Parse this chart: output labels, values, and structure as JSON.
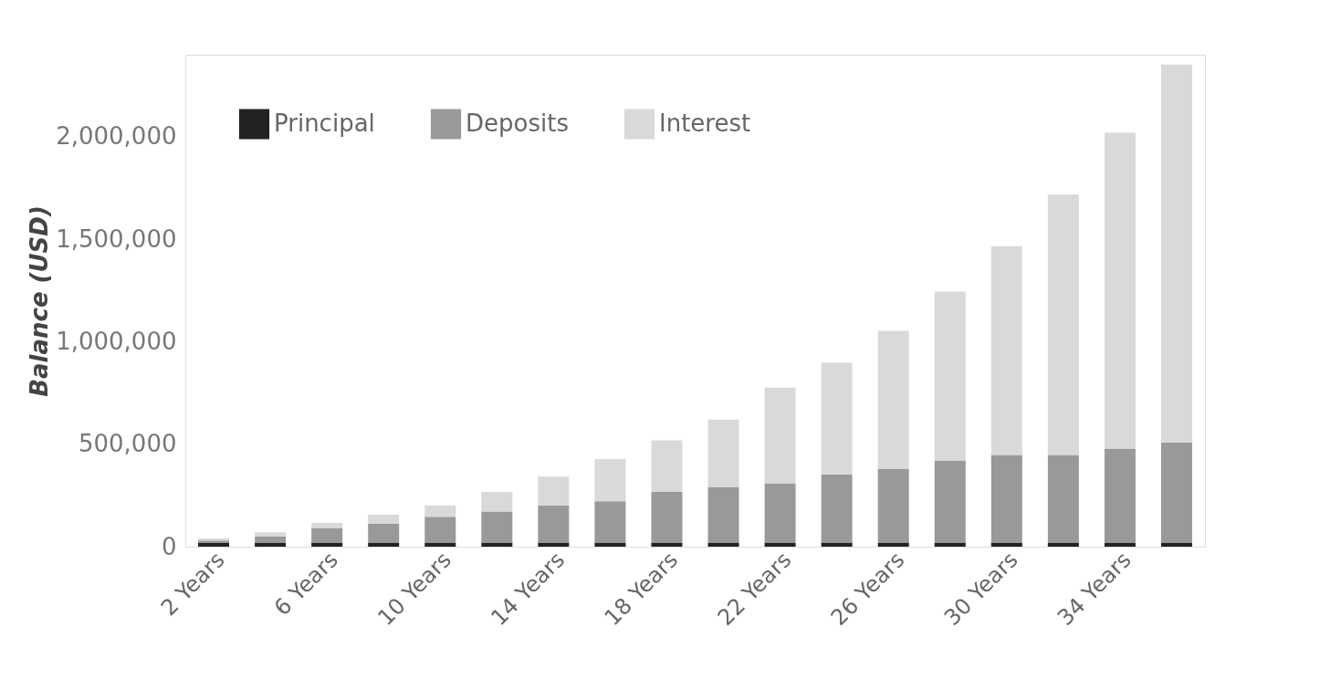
{
  "chart_data": {
    "type": "bar",
    "stacked": true,
    "ylabel": "Balance (USD)",
    "categories": [
      "2 Years",
      null,
      "6 Years",
      null,
      "10 Years",
      null,
      "14 Years",
      null,
      "18 Years",
      null,
      "22 Years",
      null,
      "26 Years",
      null,
      "30 Years",
      null,
      "34 Years",
      null
    ],
    "series": [
      {
        "name": "Principal",
        "color": "#222222",
        "values": [
          20000,
          20000,
          20000,
          20000,
          20000,
          20000,
          20000,
          20000,
          20000,
          20000,
          20000,
          20000,
          20000,
          20000,
          20000,
          20000,
          20000,
          20000
        ]
      },
      {
        "name": "Deposits",
        "color": "#999999",
        "values": [
          10000,
          30000,
          71000,
          91000,
          126000,
          151000,
          181000,
          202000,
          247000,
          272000,
          287000,
          333000,
          358000,
          398000,
          428000,
          428000,
          459000,
          489000
        ]
      },
      {
        "name": "Interest",
        "color": "#d9d9d9",
        "values": [
          10000,
          20000,
          25000,
          45000,
          55000,
          96000,
          141000,
          206000,
          252000,
          328000,
          469000,
          544000,
          675000,
          826000,
          1018000,
          1270000,
          1541000,
          1843000
        ]
      }
    ],
    "ylim": [
      0,
      2400000
    ],
    "yticks": [
      0,
      {
        "value": 500000,
        "label": "500,000"
      },
      {
        "value": 1000000,
        "label": "1,000,000"
      },
      {
        "value": 1500000,
        "label": "1,500,000"
      },
      {
        "value": 2000000,
        "label": "2,000,000"
      }
    ],
    "grid": false,
    "legend": "top left"
  }
}
